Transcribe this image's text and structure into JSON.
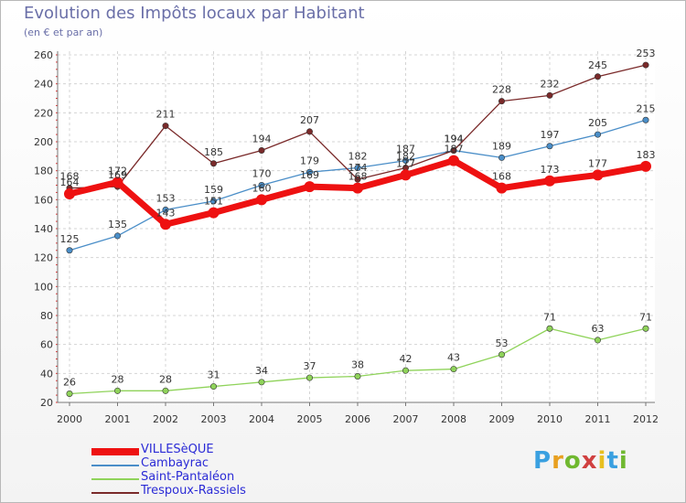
{
  "title": "Evolution des Impôts locaux par Habitant",
  "subtitle": "(en € et par an)",
  "logo": {
    "text": "Proxiti",
    "letter_colors": [
      "#3aa0e0",
      "#e8a020",
      "#70b830",
      "#d04040",
      "#e8c020",
      "#3aa0e0",
      "#70b830"
    ]
  },
  "chart_data": {
    "type": "line",
    "x": [
      "2000",
      "2001",
      "2002",
      "2003",
      "2004",
      "2005",
      "2006",
      "2007",
      "2008",
      "2009",
      "2010",
      "2011",
      "2012"
    ],
    "ylim": [
      20,
      260
    ],
    "yticks": [
      20,
      40,
      60,
      80,
      100,
      120,
      140,
      160,
      180,
      200,
      220,
      240,
      260
    ],
    "grid": true,
    "legend_position": "bottom-left",
    "series": [
      {
        "name": "VILLESèQUE",
        "color": "#ee1111",
        "values": [
          164,
          172,
          143,
          151,
          160,
          169,
          168,
          177,
          187,
          168,
          173,
          177,
          183
        ]
      },
      {
        "name": "Cambayrac",
        "color": "#4a8ec8",
        "values": [
          125,
          135,
          153,
          159,
          170,
          179,
          182,
          187,
          194,
          189,
          197,
          205,
          215
        ]
      },
      {
        "name": "Saint-Pantaléon",
        "color": "#8fd35a",
        "values": [
          26,
          28,
          28,
          31,
          34,
          37,
          38,
          42,
          43,
          53,
          71,
          63,
          71
        ]
      },
      {
        "name": "Trespoux-Rassiels",
        "color": "#7a2a2a",
        "values": [
          168,
          169,
          211,
          185,
          194,
          207,
          174,
          182,
          194,
          228,
          232,
          245,
          253
        ]
      }
    ]
  }
}
